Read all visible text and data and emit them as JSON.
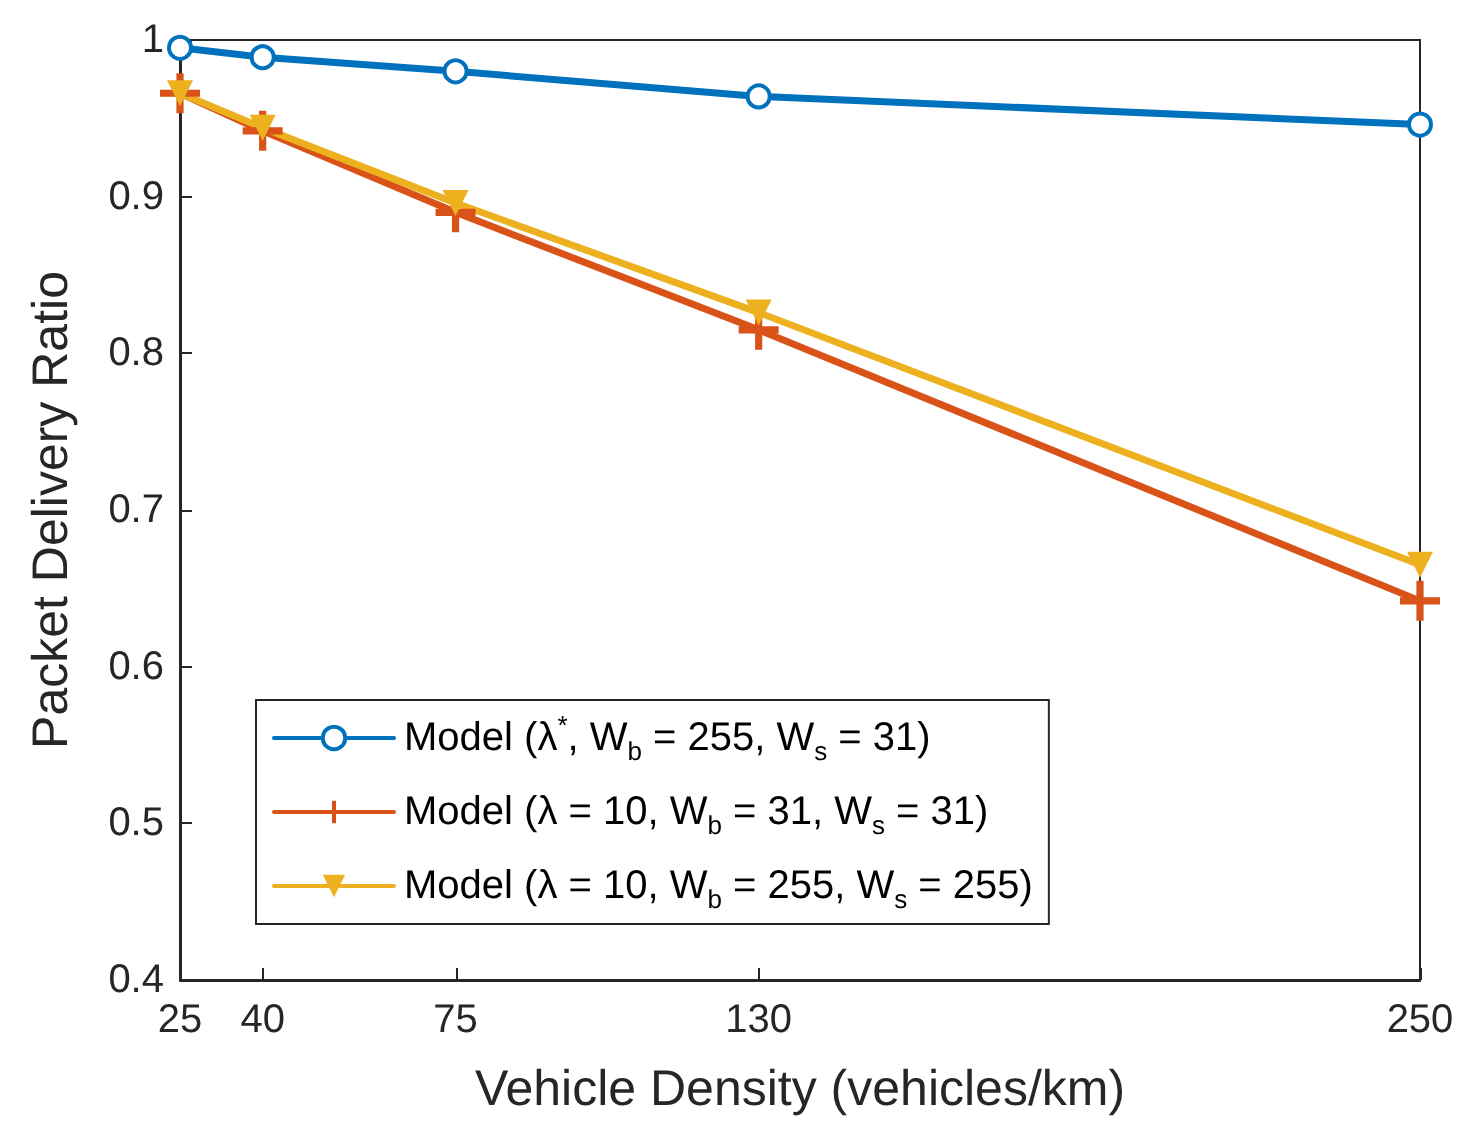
{
  "chart_data": {
    "type": "line",
    "xlabel": "Vehicle Density (vehicles/km)",
    "ylabel": "Packet Delivery Ratio",
    "x": [
      25,
      40,
      75,
      130,
      250
    ],
    "xlim": [
      25,
      250
    ],
    "xticks": [
      25,
      40,
      75,
      130,
      250
    ],
    "ylim": [
      0.4,
      1
    ],
    "yticks": [
      0.4,
      0.5,
      0.6,
      0.7,
      0.8,
      0.9,
      1
    ],
    "grid": false,
    "legend": "bottom left",
    "line_style": "solid",
    "series": [
      {
        "name": "Model (λ$^{*}$, W$_{b}$ = 255, W$_{s}$ = 31)",
        "color": "#0072bd",
        "marker": "circle",
        "values": [
          0.995,
          0.989,
          0.98,
          0.964,
          0.946
        ]
      },
      {
        "name": "Model (λ = 10, W$_{b}$ = 31, W$_{s}$ = 31)",
        "color": "#d95319",
        "marker": "cross",
        "values": [
          0.966,
          0.942,
          0.89,
          0.815,
          0.642
        ]
      },
      {
        "name": "Model (λ = 10, W$_{b}$ = 255, W$_{s}$ = 255)",
        "color": "#edb120",
        "marker": "triangle",
        "values": [
          0.966,
          0.944,
          0.896,
          0.826,
          0.665
        ]
      }
    ]
  }
}
